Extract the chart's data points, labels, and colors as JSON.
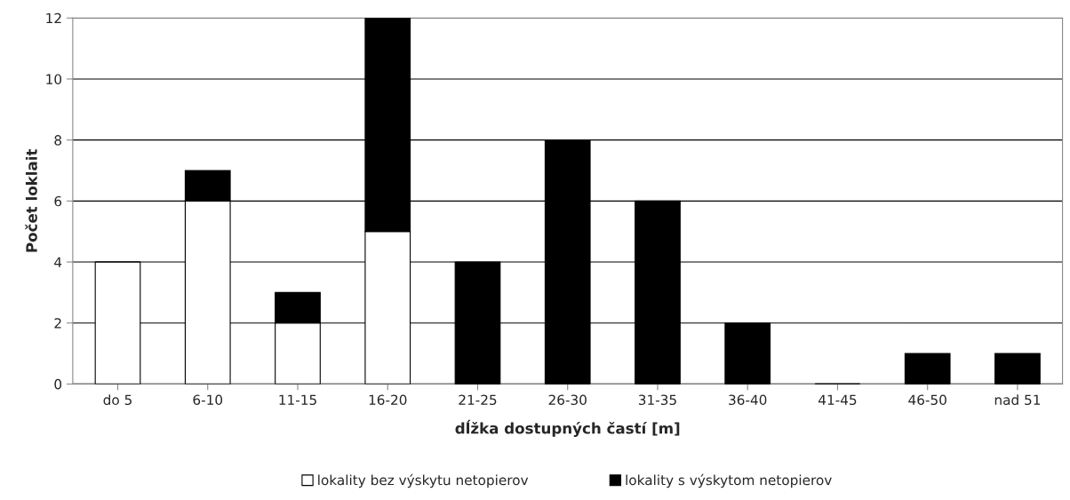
{
  "chart_data": {
    "type": "bar",
    "stacked": true,
    "xlabel": "dĺžka dostupných častí [m]",
    "ylabel": "Počet loklait",
    "categories": [
      "do 5",
      "6-10",
      "11-15",
      "16-20",
      "21-25",
      "26-30",
      "31-35",
      "36-40",
      "41-45",
      "46-50",
      "nad 51"
    ],
    "series": [
      {
        "name": "lokality bez výskytu netopierov",
        "color": "#ffffff",
        "values": [
          4,
          6,
          2,
          5,
          0,
          0,
          0,
          0,
          0,
          0,
          0
        ]
      },
      {
        "name": "lokality s výskytom netopierov",
        "color": "#000000",
        "values": [
          0,
          1,
          1,
          7,
          4,
          8,
          6,
          2,
          0,
          1,
          1
        ]
      }
    ],
    "ylim": [
      0,
      12
    ],
    "yticks": [
      0,
      2,
      4,
      6,
      8,
      10,
      12
    ],
    "grid": "y",
    "legend": "bottom"
  }
}
